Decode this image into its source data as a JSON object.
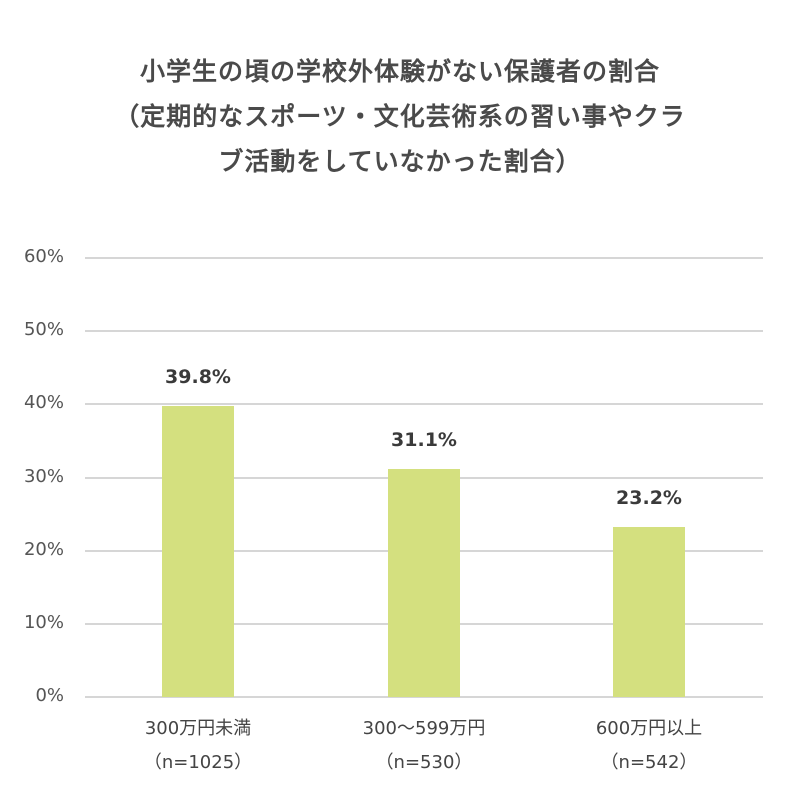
{
  "title": {
    "line1": "小学生の頃の学校外体験がない保護者の割合",
    "line2": "（定期的なスポーツ・文化芸術系の習い事やクラ",
    "line3": "ブ活動をしていなかった割合）"
  },
  "colors": {
    "bar": "#d4e07f",
    "grid": "#d6d6d6",
    "text": "#404040"
  },
  "y_ticks": [
    "0%",
    "10%",
    "20%",
    "30%",
    "40%",
    "50%",
    "60%"
  ],
  "bars": [
    {
      "label_line1": "300万円未満",
      "label_line2": "（n=1025）",
      "value": 39.8,
      "value_label": "39.8%"
    },
    {
      "label_line1": "300～599万円",
      "label_line2": "（n=530）",
      "value": 31.1,
      "value_label": "31.1%"
    },
    {
      "label_line1": "600万円以上",
      "label_line2": "（n=542）",
      "value": 23.2,
      "value_label": "23.2%"
    }
  ],
  "chart_data": {
    "type": "bar",
    "title": "小学生の頃の学校外体験がない保護者の割合（定期的なスポーツ・文化芸術系の習い事やクラブ活動をしていなかった割合）",
    "categories": [
      "300万円未満（n=1025）",
      "300～599万円（n=530）",
      "600万円以上（n=542）"
    ],
    "values": [
      39.8,
      31.1,
      23.2
    ],
    "data_labels": [
      "39.8%",
      "31.1%",
      "23.2%"
    ],
    "xlabel": "",
    "ylabel": "",
    "ylim": [
      0,
      60
    ],
    "y_tick_labels": [
      "0%",
      "10%",
      "20%",
      "30%",
      "40%",
      "50%",
      "60%"
    ],
    "grid": true,
    "legend": null
  }
}
